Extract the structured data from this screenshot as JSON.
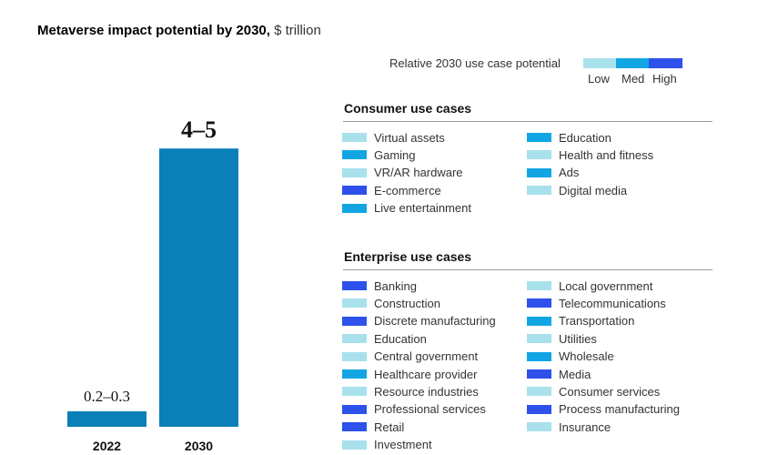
{
  "title": {
    "bold": "Metaverse impact potential by 2030,",
    "unit": "$ trillion"
  },
  "colors": {
    "low": "#a8e1eb",
    "med": "#11a6e3",
    "high": "#2d51ea",
    "bar": "#0b7fb7"
  },
  "scale": {
    "label": "Relative 2030 use case potential",
    "low": "Low",
    "med": "Med",
    "high": "High"
  },
  "chart_data": {
    "type": "bar",
    "title": "Metaverse impact potential by 2030, $ trillion",
    "categories": [
      "2022",
      "2030"
    ],
    "values": [
      0.25,
      4.5
    ],
    "data_labels": [
      "0.2–0.3",
      "4–5"
    ],
    "ylim": [
      0,
      4.9
    ],
    "grid": false
  },
  "consumer": {
    "title": "Consumer use cases",
    "col1": [
      {
        "label": "Virtual assets",
        "level": "low"
      },
      {
        "label": "Gaming",
        "level": "med"
      },
      {
        "label": "VR/AR hardware",
        "level": "low"
      },
      {
        "label": "E-commerce",
        "level": "high"
      },
      {
        "label": "Live entertainment",
        "level": "med"
      }
    ],
    "col2": [
      {
        "label": "Education",
        "level": "med"
      },
      {
        "label": "Health and fitness",
        "level": "low"
      },
      {
        "label": "Ads",
        "level": "med"
      },
      {
        "label": "Digital media",
        "level": "low"
      }
    ]
  },
  "enterprise": {
    "title": "Enterprise use cases",
    "col1": [
      {
        "label": "Banking",
        "level": "high"
      },
      {
        "label": "Construction",
        "level": "low"
      },
      {
        "label": "Discrete manufacturing",
        "level": "high"
      },
      {
        "label": "Education",
        "level": "low"
      },
      {
        "label": "Central government",
        "level": "low"
      },
      {
        "label": "Healthcare provider",
        "level": "med"
      },
      {
        "label": "Resource industries",
        "level": "low"
      },
      {
        "label": "Professional services",
        "level": "high"
      },
      {
        "label": "Retail",
        "level": "high"
      },
      {
        "label": "Investment",
        "level": "low"
      }
    ],
    "col2": [
      {
        "label": "Local government",
        "level": "low"
      },
      {
        "label": "Telecommunications",
        "level": "high"
      },
      {
        "label": "Transportation",
        "level": "med"
      },
      {
        "label": "Utilities",
        "level": "low"
      },
      {
        "label": "Wholesale",
        "level": "med"
      },
      {
        "label": "Media",
        "level": "high"
      },
      {
        "label": "Consumer services",
        "level": "low"
      },
      {
        "label": "Process manufacturing",
        "level": "high"
      },
      {
        "label": "Insurance",
        "level": "low"
      }
    ]
  }
}
